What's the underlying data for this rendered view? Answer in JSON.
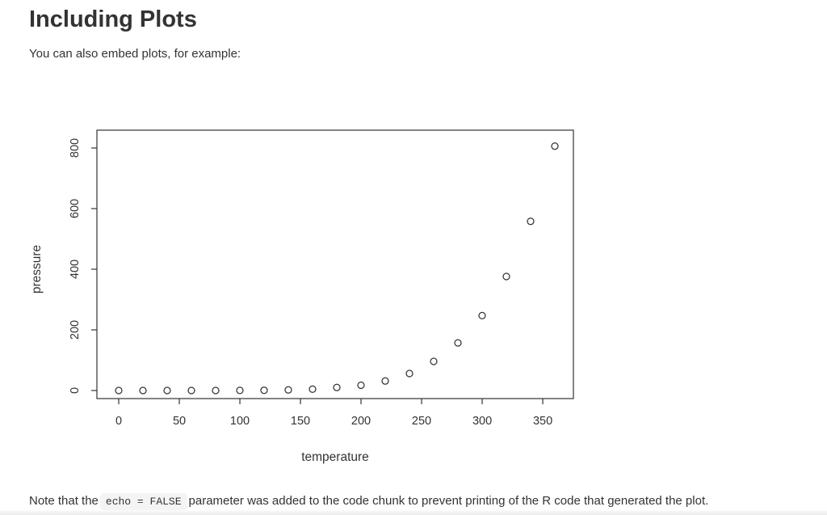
{
  "page": {
    "background": "#ffffff"
  },
  "heading": "Including Plots",
  "intro_text": "You can also embed plots, for example:",
  "note": {
    "prefix": "Note that the",
    "code": "echo = FALSE",
    "suffix": "parameter was added to the code chunk to prevent printing of the R code that generated the plot."
  },
  "colors": {
    "text": "#333333",
    "plot_stroke": "#333333",
    "code_background": "#f4f4f4"
  },
  "chart_data": {
    "type": "scatter",
    "title": "",
    "xlabel": "temperature",
    "ylabel": "pressure",
    "x": [
      0,
      20,
      40,
      60,
      80,
      100,
      120,
      140,
      160,
      180,
      200,
      220,
      240,
      260,
      280,
      300,
      320,
      340,
      360
    ],
    "y": [
      0.0002,
      0.0012,
      0.006,
      0.03,
      0.09,
      0.27,
      0.75,
      1.85,
      4.2,
      9.8,
      17.3,
      31.1,
      56,
      96,
      157,
      247,
      376,
      558,
      806
    ],
    "x_ticks": [
      0,
      50,
      100,
      150,
      200,
      250,
      300,
      350
    ],
    "y_ticks": [
      0,
      200,
      400,
      600,
      800
    ],
    "xlim": [
      -18,
      375.3
    ],
    "ylim": [
      -26.7,
      858.7
    ],
    "marker": "open-circle",
    "grid": false,
    "legend": "none",
    "box": true
  }
}
